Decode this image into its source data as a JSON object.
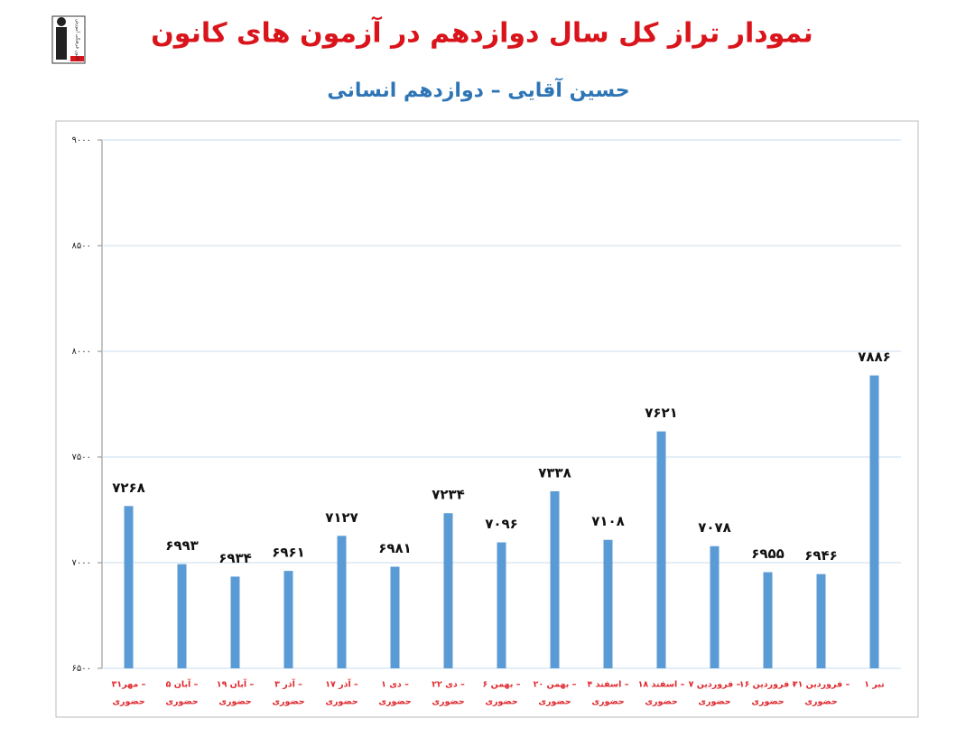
{
  "logo": {
    "text": "کانون فرهنگی آموزش"
  },
  "chart_data": {
    "type": "bar",
    "title": "نمودار تراز کل سال دوازدهم در آزمون های کانون",
    "subtitle": "حسین آقایی – دوازدهم انسانی",
    "categories": [
      [
        "۳۱مهر –",
        "حضوری"
      ],
      [
        "۵ آبان –",
        "حضوری"
      ],
      [
        "۱۹ آبان –",
        "حضوری"
      ],
      [
        "۳ آذر –",
        "حضوری"
      ],
      [
        "۱۷ آذر –",
        "حضوری"
      ],
      [
        "۱ دی –",
        "حضوری"
      ],
      [
        "۲۲ دی –",
        "حضوری"
      ],
      [
        "۶ بهمن –",
        "حضوری"
      ],
      [
        "۲۰ بهمن –",
        "حضوری"
      ],
      [
        "۴ اسفند –",
        "حضوری"
      ],
      [
        "۱۸ اسفند –",
        "حضوری"
      ],
      [
        "۷ فروردین –",
        "حضوری"
      ],
      [
        "۱۶ فروردین –",
        "حضوری"
      ],
      [
        "۳۱ فروردین –",
        "حضوری"
      ],
      [
        "۱ تیر"
      ]
    ],
    "values": [
      7268,
      6993,
      6934,
      6961,
      7127,
      6981,
      7234,
      7096,
      7338,
      7108,
      7621,
      7078,
      6955,
      6946,
      7886
    ],
    "value_labels": [
      "۷۲۶۸",
      "۶۹۹۳",
      "۶۹۳۴",
      "۶۹۶۱",
      "۷۱۲۷",
      "۶۹۸۱",
      "۷۲۳۴",
      "۷۰۹۶",
      "۷۳۳۸",
      "۷۱۰۸",
      "۷۶۲۱",
      "۷۰۷۸",
      "۶۹۵۵",
      "۶۹۴۶",
      "۷۸۸۶"
    ],
    "color": "#5b9bd5",
    "ylim": [
      6500,
      9000
    ],
    "yticks": [
      {
        "value": 6500,
        "label": "۶۵۰۰"
      },
      {
        "value": 7000,
        "label": "۷۰۰۰"
      },
      {
        "value": 7500,
        "label": "۷۵۰۰"
      },
      {
        "value": 8000,
        "label": "۸۰۰۰"
      },
      {
        "value": 8500,
        "label": "۸۵۰۰"
      },
      {
        "value": 9000,
        "label": "۹۰۰۰"
      }
    ],
    "grid": true
  }
}
